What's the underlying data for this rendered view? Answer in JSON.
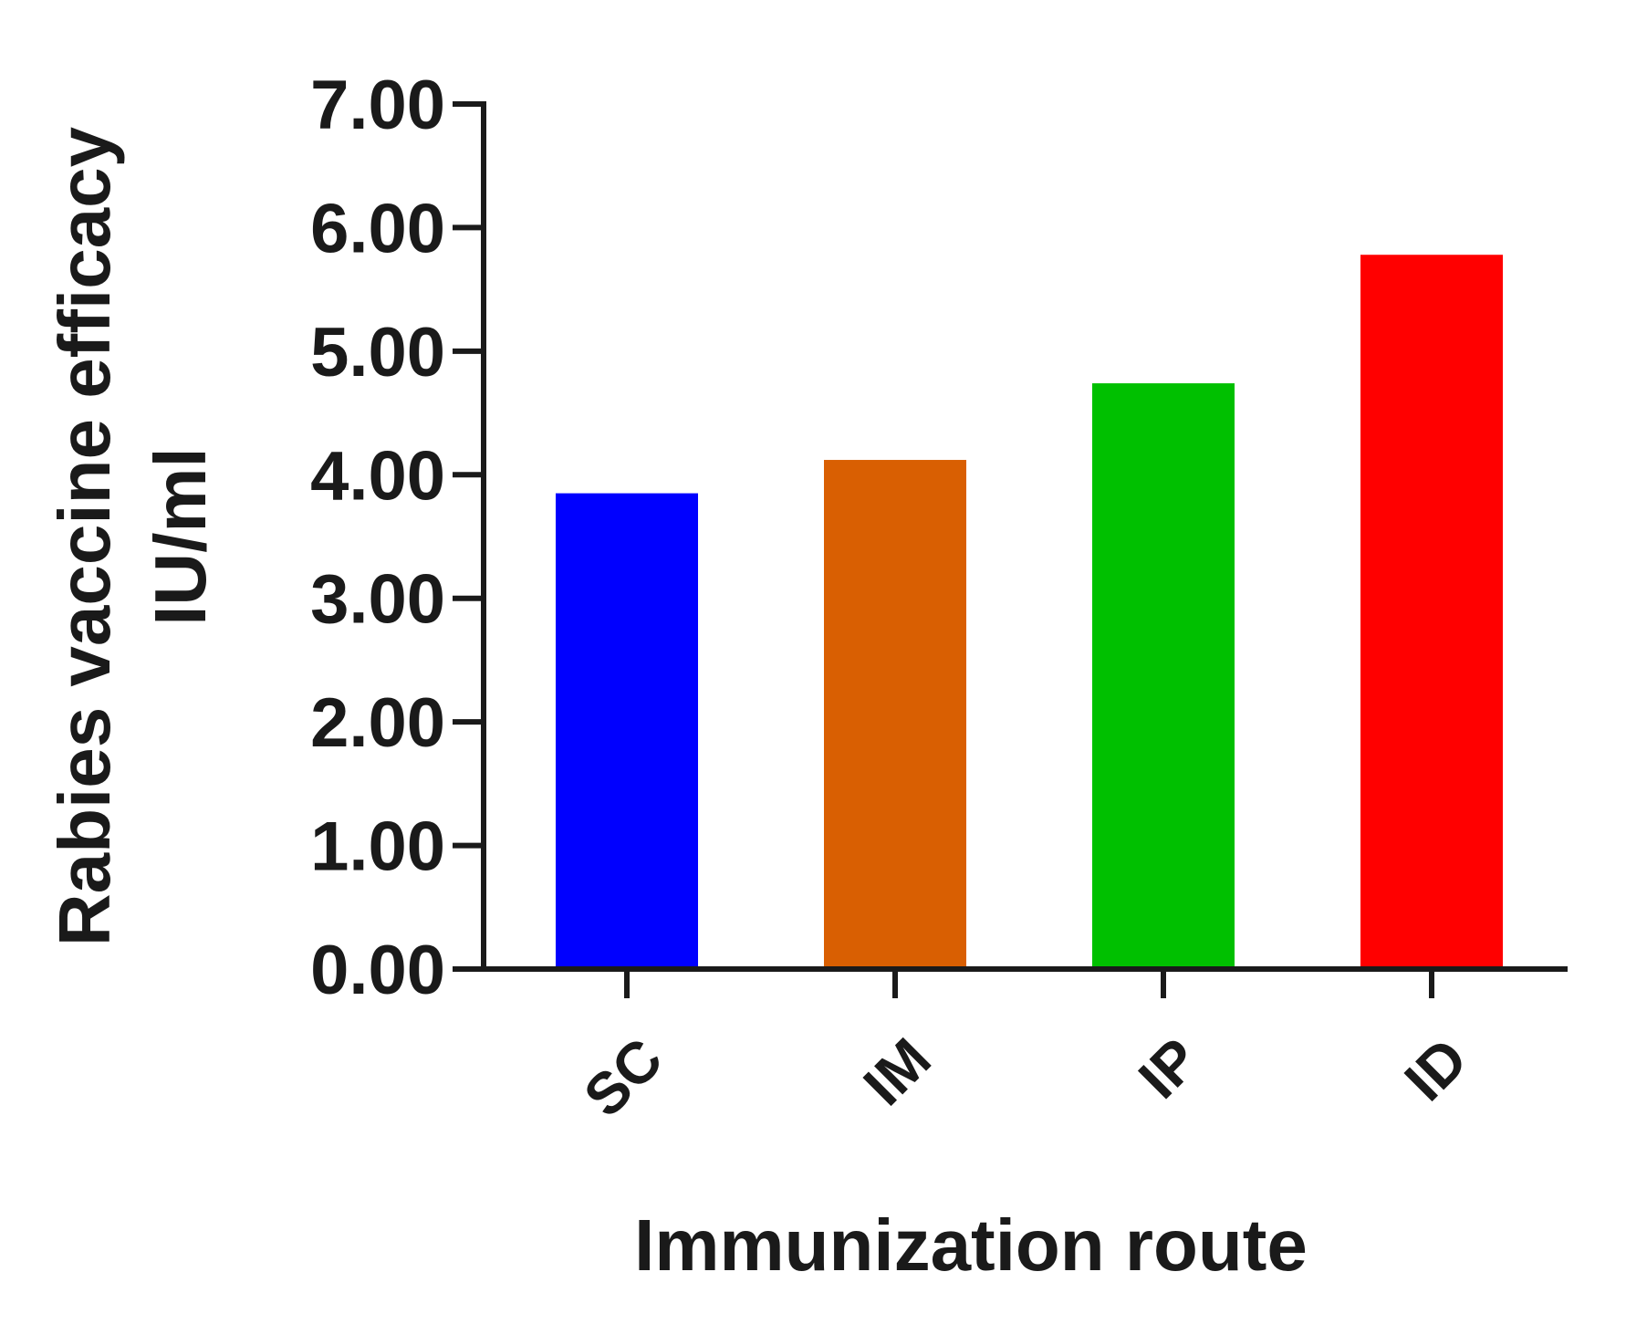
{
  "chart_data": {
    "type": "bar",
    "title": "",
    "xlabel": "Immunization route",
    "ylabel_lines": [
      "Rabies vaccine efficacy",
      "IU/ml"
    ],
    "categories": [
      "SC",
      "IM",
      "IP",
      "ID"
    ],
    "values": [
      3.85,
      4.12,
      4.74,
      5.78
    ],
    "bar_colors": [
      "#0000ff",
      "#d95f02",
      "#00c000",
      "#ff0000"
    ],
    "ylim": [
      0,
      7
    ],
    "yticks": [
      0,
      1,
      2,
      3,
      4,
      5,
      6,
      7
    ],
    "ytick_labels": [
      "0.00",
      "1.00",
      "2.00",
      "3.00",
      "4.00",
      "5.00",
      "6.00",
      "7.00"
    ],
    "grid": false,
    "legend": "none"
  }
}
